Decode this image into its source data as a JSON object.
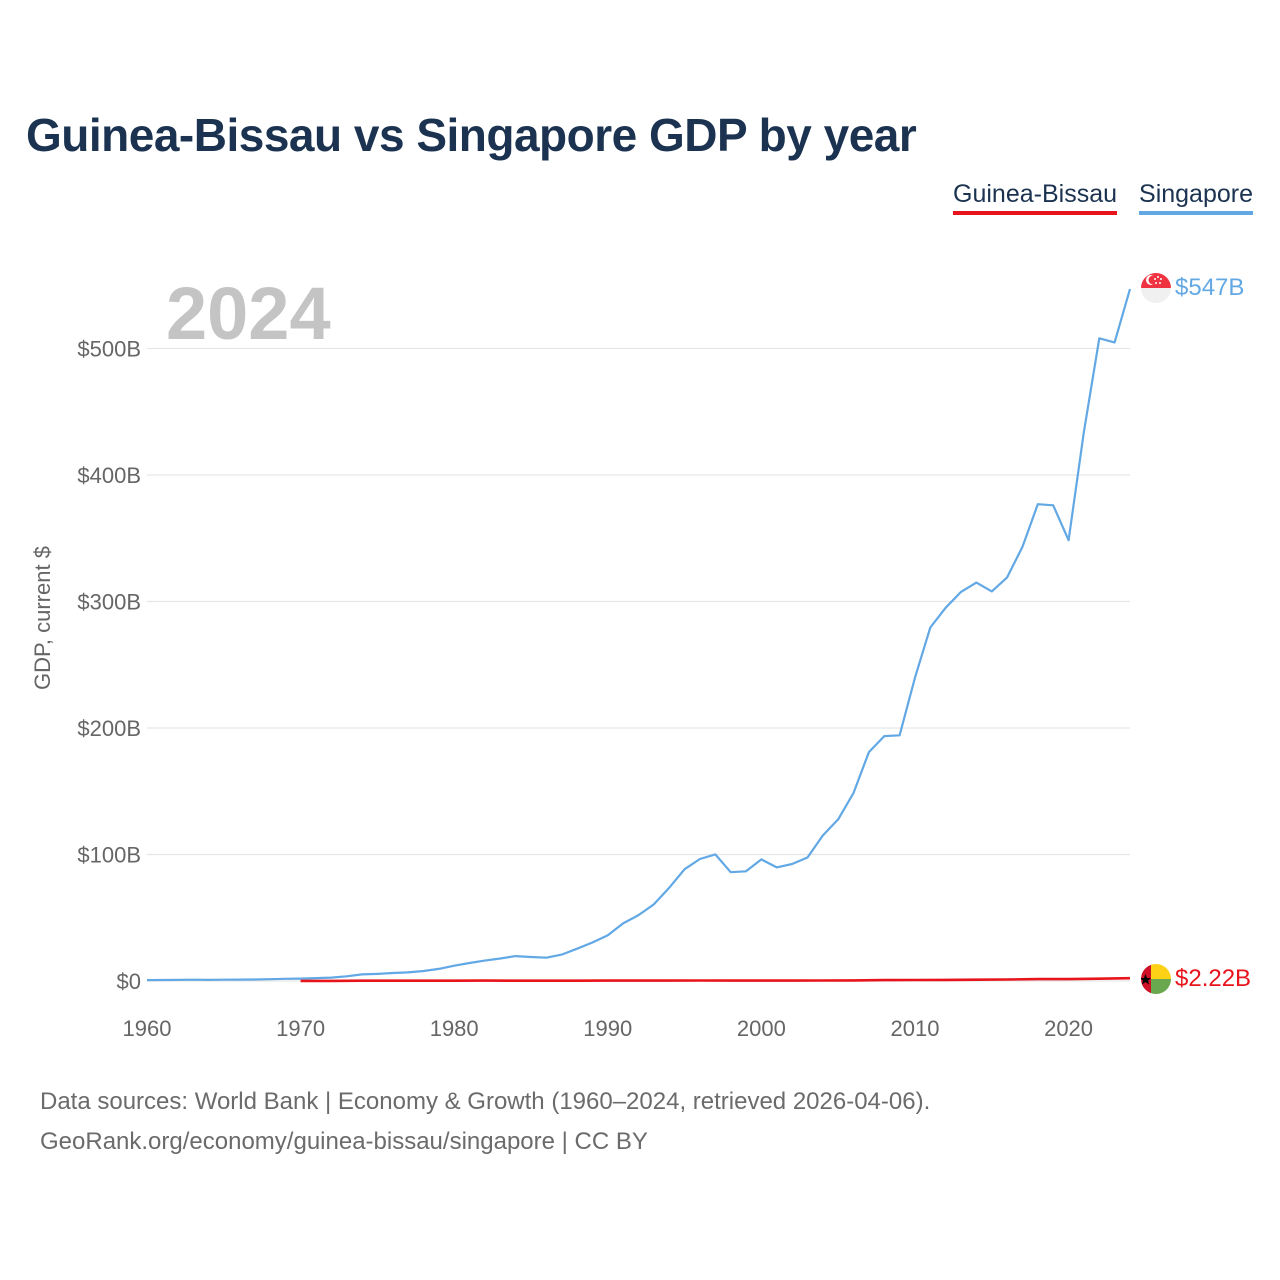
{
  "title": "Guinea-Bissau vs Singapore GDP by year",
  "legend": {
    "guinea_bissau": "Guinea-Bissau",
    "singapore": "Singapore"
  },
  "current_year": "2024",
  "footer": {
    "line1": "Data sources: World Bank | Economy & Growth (1960–2024, retrieved 2026-04-06).",
    "line2": "GeoRank.org/economy/guinea-bissau/singapore | CC BY"
  },
  "colors": {
    "guinea_bissau": "#e8141c",
    "singapore": "#62a8e5",
    "grid": "#e6e6e6",
    "text": "#1b3350"
  },
  "chart_data": {
    "type": "line",
    "title": "Guinea-Bissau vs Singapore GDP by year",
    "xlabel": "",
    "ylabel": "GDP, current $",
    "xlim": [
      1960,
      2024
    ],
    "ylim": [
      0,
      547
    ],
    "unit": "billions USD",
    "x_ticks": [
      1960,
      1970,
      1980,
      1990,
      2000,
      2010,
      2020
    ],
    "x_tick_labels": [
      "1960",
      "1970",
      "1980",
      "1990",
      "2000",
      "2010",
      "2020"
    ],
    "y_ticks": [
      0,
      100,
      200,
      300,
      400,
      500
    ],
    "y_tick_labels": [
      "$0",
      "$100B",
      "$200B",
      "$300B",
      "$400B",
      "$500B"
    ],
    "series": [
      {
        "name": "Singapore",
        "color": "#62a8e5",
        "end_label": "$547B",
        "x": [
          1960,
          1961,
          1962,
          1963,
          1964,
          1965,
          1966,
          1967,
          1968,
          1969,
          1970,
          1971,
          1972,
          1973,
          1974,
          1975,
          1976,
          1977,
          1978,
          1979,
          1980,
          1981,
          1982,
          1983,
          1984,
          1985,
          1986,
          1987,
          1988,
          1989,
          1990,
          1991,
          1992,
          1993,
          1994,
          1995,
          1996,
          1997,
          1998,
          1999,
          2000,
          2001,
          2002,
          2003,
          2004,
          2005,
          2006,
          2007,
          2008,
          2009,
          2010,
          2011,
          2012,
          2013,
          2014,
          2015,
          2016,
          2017,
          2018,
          2019,
          2020,
          2021,
          2022,
          2023,
          2024
        ],
        "values": [
          0.7,
          0.8,
          0.9,
          1.0,
          0.9,
          1.0,
          1.1,
          1.2,
          1.4,
          1.7,
          1.9,
          2.3,
          2.7,
          3.7,
          5.2,
          5.6,
          6.3,
          6.8,
          7.9,
          9.6,
          12.1,
          14.2,
          16.1,
          17.8,
          19.7,
          19.0,
          18.4,
          20.9,
          25.5,
          30.4,
          36.2,
          45.5,
          52.1,
          60.6,
          73.7,
          88.4,
          96.4,
          100.1,
          86.0,
          86.7,
          96.1,
          89.8,
          92.5,
          97.6,
          115.0,
          127.8,
          148.6,
          180.9,
          193.6,
          194.2,
          239.8,
          279.4,
          295.1,
          307.6,
          314.9,
          308.0,
          319.0,
          343.2,
          376.9,
          376.0,
          348.4,
          434.1,
          508.0,
          504.8,
          547.0
        ]
      },
      {
        "name": "Guinea-Bissau",
        "color": "#e8141c",
        "end_label": "$2.22B",
        "x": [
          1970,
          1972,
          1974,
          1976,
          1978,
          1980,
          1982,
          1984,
          1986,
          1988,
          1990,
          1992,
          1994,
          1996,
          1998,
          2000,
          2002,
          2004,
          2006,
          2008,
          2010,
          2012,
          2014,
          2016,
          2018,
          2020,
          2022,
          2024
        ],
        "values": [
          0.1,
          0.1,
          0.2,
          0.2,
          0.2,
          0.2,
          0.3,
          0.2,
          0.2,
          0.2,
          0.3,
          0.3,
          0.3,
          0.4,
          0.3,
          0.3,
          0.3,
          0.4,
          0.5,
          0.7,
          0.8,
          0.9,
          1.0,
          1.2,
          1.5,
          1.5,
          1.8,
          2.22
        ]
      }
    ]
  }
}
